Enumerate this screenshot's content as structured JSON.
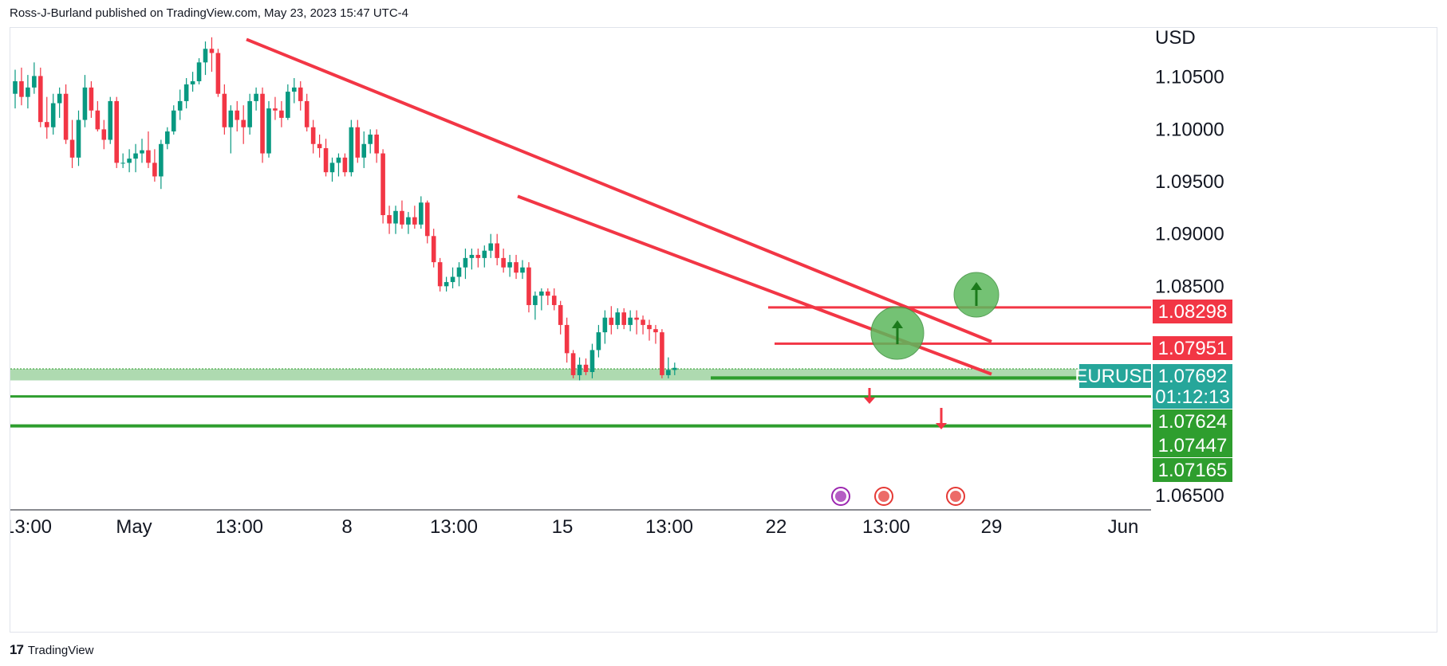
{
  "header": {
    "text": "Ross-J-Burland published on TradingView.com, May 23, 2023 15:47 UTC-4"
  },
  "footer": {
    "logo": "17",
    "brand": "TradingView"
  },
  "colors": {
    "up": "#089981",
    "down": "#f23645",
    "trend": "#f23645",
    "support": "#2e9e2e",
    "zone": "#a5d6a7",
    "accent": "#26a69a"
  },
  "chart_data": {
    "type": "candlestick",
    "symbol": "EURUSD",
    "currency_label": "USD",
    "ylim": [
      1.0637,
      1.1097
    ],
    "y_ticks": [
      "1.10500",
      "1.10000",
      "1.09500",
      "1.09000",
      "1.08500",
      "1.06500"
    ],
    "x_ticks": [
      "13:00",
      "May",
      "13:00",
      "8",
      "13:00",
      "15",
      "13:00",
      "22",
      "13:00",
      "29",
      "Jun"
    ],
    "candles": [
      [
        1.1034,
        1.1057,
        1.102,
        1.1046
      ],
      [
        1.1046,
        1.1059,
        1.1023,
        1.1031
      ],
      [
        1.1031,
        1.1052,
        1.102,
        1.104
      ],
      [
        1.104,
        1.1064,
        1.1034,
        1.1051
      ],
      [
        1.1051,
        1.1059,
        1.1002,
        1.1007
      ],
      [
        1.1007,
        1.1031,
        1.0991,
        1.1002
      ],
      [
        1.1002,
        1.1034,
        1.0995,
        1.1025
      ],
      [
        1.1025,
        1.104,
        1.1011,
        1.1034
      ],
      [
        1.1034,
        1.1043,
        1.0986,
        1.099
      ],
      [
        1.099,
        1.1009,
        1.0963,
        1.0973
      ],
      [
        1.0973,
        1.1018,
        1.0965,
        1.1009
      ],
      [
        1.1009,
        1.1052,
        1.1002,
        1.104
      ],
      [
        1.104,
        1.1046,
        1.1011,
        1.1018
      ],
      [
        1.1018,
        1.1027,
        1.0998,
        1.1
      ],
      [
        1.1,
        1.1009,
        1.0981,
        1.099
      ],
      [
        1.099,
        1.1031,
        1.0986,
        1.1027
      ],
      [
        1.1027,
        1.1031,
        1.0963,
        1.0968
      ],
      [
        1.0968,
        1.0977,
        1.0963,
        1.0968
      ],
      [
        1.0968,
        1.0981,
        1.0959,
        1.0972
      ],
      [
        1.0972,
        1.0986,
        1.0959,
        1.0977
      ],
      [
        1.0977,
        1.0991,
        1.0968,
        1.098
      ],
      [
        1.098,
        1.0998,
        1.0963,
        1.0968
      ],
      [
        1.0968,
        1.0981,
        1.095,
        1.0955
      ],
      [
        1.0955,
        1.099,
        1.0943,
        1.0986
      ],
      [
        1.0986,
        1.1002,
        1.0981,
        1.0998
      ],
      [
        1.0998,
        1.1023,
        1.0995,
        1.1018
      ],
      [
        1.1018,
        1.1038,
        1.1009,
        1.1027
      ],
      [
        1.1027,
        1.1049,
        1.102,
        1.1043
      ],
      [
        1.1043,
        1.1055,
        1.1036,
        1.1046
      ],
      [
        1.1046,
        1.1068,
        1.1043,
        1.1064
      ],
      [
        1.1064,
        1.1084,
        1.1052,
        1.1077
      ],
      [
        1.1077,
        1.1088,
        1.1055,
        1.1073
      ],
      [
        1.1073,
        1.1077,
        1.1031,
        1.1034
      ],
      [
        1.1034,
        1.1043,
        1.0995,
        1.1002
      ],
      [
        1.1002,
        1.1023,
        1.0977,
        1.1018
      ],
      [
        1.1018,
        1.1027,
        1.0998,
        1.1009
      ],
      [
        1.1009,
        1.1023,
        1.0986,
        1.1002
      ],
      [
        1.1002,
        1.1034,
        1.0995,
        1.1027
      ],
      [
        1.1027,
        1.104,
        1.1018,
        1.1034
      ],
      [
        1.1034,
        1.104,
        1.0968,
        1.0977
      ],
      [
        1.0977,
        1.1027,
        1.0973,
        1.102
      ],
      [
        1.102,
        1.1031,
        1.1009,
        1.1018
      ],
      [
        1.1018,
        1.1027,
        1.1002,
        1.1011
      ],
      [
        1.1011,
        1.1043,
        1.1009,
        1.1036
      ],
      [
        1.1036,
        1.1049,
        1.1025,
        1.104
      ],
      [
        1.104,
        1.1046,
        1.1018,
        1.1027
      ],
      [
        1.1027,
        1.1034,
        1.0998,
        1.1002
      ],
      [
        1.1002,
        1.1009,
        1.0977,
        1.0986
      ],
      [
        1.0986,
        1.0995,
        1.0973,
        1.0982
      ],
      [
        1.0982,
        1.0991,
        1.0955,
        1.0959
      ],
      [
        1.0959,
        1.0973,
        1.095,
        1.0968
      ],
      [
        1.0968,
        1.0977,
        1.0955,
        1.0973
      ],
      [
        1.0973,
        1.0977,
        1.0955,
        1.0959
      ],
      [
        1.0959,
        1.1009,
        1.0955,
        1.1002
      ],
      [
        1.1002,
        1.1009,
        1.0968,
        1.0973
      ],
      [
        1.0973,
        1.0998,
        1.0963,
        1.0986
      ],
      [
        1.0986,
        1.1,
        1.0977,
        1.0995
      ],
      [
        1.0995,
        1.1,
        1.0968,
        1.0977
      ],
      [
        1.0977,
        1.0981,
        1.091,
        1.0918
      ],
      [
        1.0918,
        1.0927,
        1.09,
        1.091
      ],
      [
        1.091,
        1.0927,
        1.09,
        1.0922
      ],
      [
        1.0922,
        1.0932,
        1.0905,
        1.0909
      ],
      [
        1.0909,
        1.0921,
        1.09,
        1.0916
      ],
      [
        1.0916,
        1.0927,
        1.0905,
        1.0909
      ],
      [
        1.0909,
        1.0936,
        1.0905,
        1.093
      ],
      [
        1.093,
        1.0932,
        1.0891,
        1.0898
      ],
      [
        1.0898,
        1.0905,
        1.0868,
        1.0873
      ],
      [
        1.0873,
        1.0877,
        1.0845,
        1.085
      ],
      [
        1.085,
        1.0859,
        1.0845,
        1.0854
      ],
      [
        1.0854,
        1.0868,
        1.0848,
        1.0859
      ],
      [
        1.0859,
        1.0873,
        1.085,
        1.0868
      ],
      [
        1.0868,
        1.0886,
        1.0857,
        1.0877
      ],
      [
        1.0877,
        1.0886,
        1.0866,
        1.088
      ],
      [
        1.088,
        1.0886,
        1.0868,
        1.0877
      ],
      [
        1.0877,
        1.0889,
        1.0868,
        1.0884
      ],
      [
        1.0884,
        1.09,
        1.0877,
        1.0891
      ],
      [
        1.0891,
        1.09,
        1.087,
        1.0877
      ],
      [
        1.0877,
        1.0886,
        1.0863,
        1.0868
      ],
      [
        1.0868,
        1.088,
        1.0859,
        1.0873
      ],
      [
        1.0873,
        1.088,
        1.0857,
        1.0863
      ],
      [
        1.0863,
        1.0875,
        1.0857,
        1.0868
      ],
      [
        1.0868,
        1.0873,
        1.0825,
        1.0832
      ],
      [
        1.0832,
        1.0845,
        1.0818,
        1.0841
      ],
      [
        1.0841,
        1.0848,
        1.0827,
        1.0845
      ],
      [
        1.0845,
        1.0848,
        1.0832,
        1.0841
      ],
      [
        1.0841,
        1.0848,
        1.0827,
        1.0832
      ],
      [
        1.0832,
        1.0836,
        1.0804,
        1.0813
      ],
      [
        1.0813,
        1.082,
        1.0777,
        1.0786
      ],
      [
        1.0786,
        1.0789,
        1.0762,
        1.0765
      ],
      [
        1.0765,
        1.0782,
        1.076,
        1.0775
      ],
      [
        1.0775,
        1.0781,
        1.0765,
        1.0768
      ],
      [
        1.0768,
        1.0795,
        1.0762,
        1.0789
      ],
      [
        1.0789,
        1.0813,
        1.0782,
        1.0806
      ],
      [
        1.0806,
        1.0827,
        1.0795,
        1.082
      ],
      [
        1.082,
        1.0831,
        1.0804,
        1.0813
      ],
      [
        1.0813,
        1.0829,
        1.0809,
        1.0825
      ],
      [
        1.0825,
        1.0829,
        1.0809,
        1.0813
      ],
      [
        1.0813,
        1.0827,
        1.0807,
        1.082
      ],
      [
        1.082,
        1.0827,
        1.0804,
        1.0818
      ],
      [
        1.0818,
        1.0822,
        1.0804,
        1.0813
      ],
      [
        1.0813,
        1.0818,
        1.0798,
        1.0809
      ],
      [
        1.0809,
        1.0813,
        1.0795,
        1.0806
      ],
      [
        1.0806,
        1.0809,
        1.0762,
        1.0765
      ],
      [
        1.0765,
        1.0782,
        1.0762,
        1.077
      ],
      [
        1.077,
        1.0777,
        1.0765,
        1.0772
      ]
    ],
    "trendlines": [
      {
        "name": "upper-trendline",
        "from": [
          1.1086
        ],
        "to": [
          1.0797
        ]
      },
      {
        "name": "lower-trendline",
        "from": [
          1.0936
        ],
        "to": [
          1.0766
        ]
      }
    ],
    "levels": [
      {
        "name": "resistance-1",
        "value": 1.08298,
        "label": "1.08298",
        "color": "#f23645"
      },
      {
        "name": "resistance-2",
        "value": 1.07951,
        "label": "1.07951",
        "color": "#f23645"
      },
      {
        "name": "support-1",
        "value": 1.07624,
        "label": "1.07624",
        "color": "#089981"
      },
      {
        "name": "support-2",
        "value": 1.07447,
        "label": "1.07447",
        "color": "#089981"
      },
      {
        "name": "support-3",
        "value": 1.07165,
        "label": "1.07165",
        "color": "#089981"
      }
    ],
    "current": {
      "symbol": "EURUSD",
      "price": "1.07692",
      "countdown": "01:12:13"
    }
  }
}
